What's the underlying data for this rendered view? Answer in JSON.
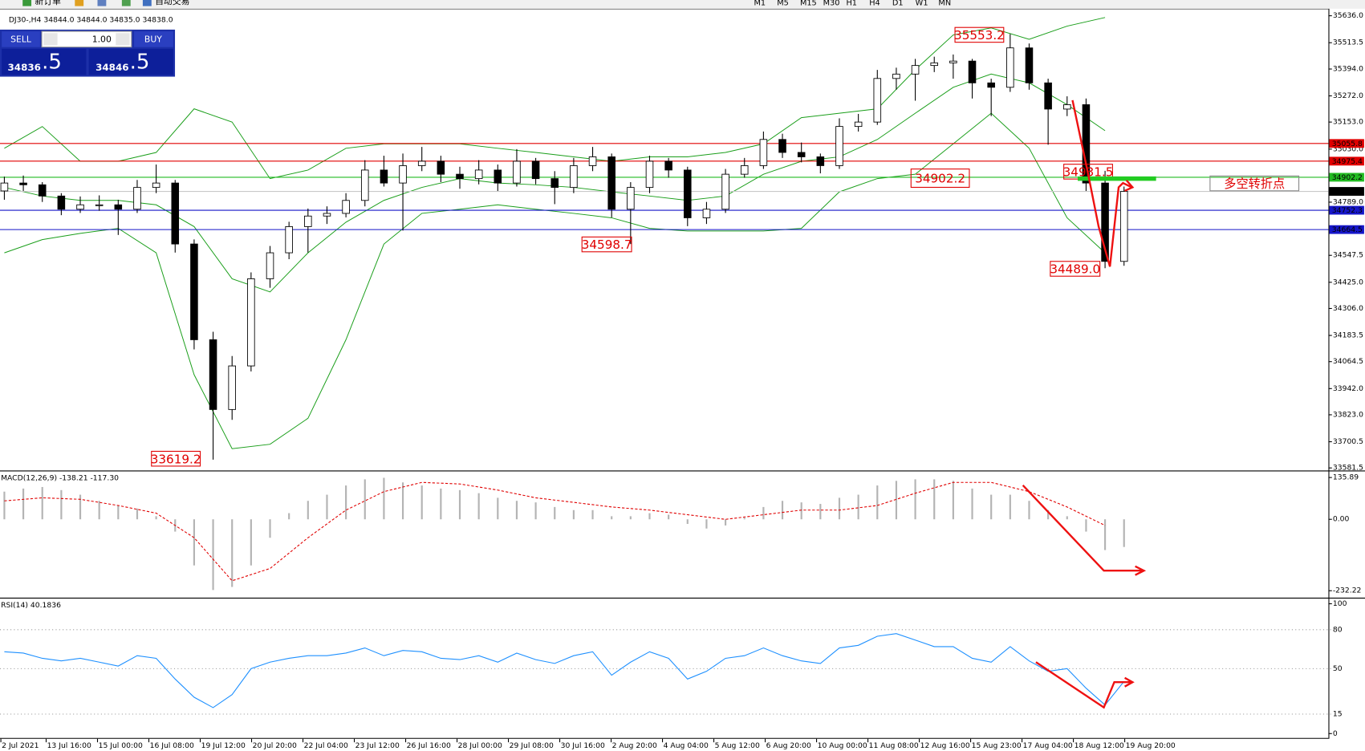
{
  "toolbar": {
    "new_order": "新订单",
    "auto_trading": "自动交易",
    "timeframes": [
      "M1",
      "M5",
      "M15",
      "M30",
      "H1",
      "H4",
      "D1",
      "W1",
      "MN"
    ]
  },
  "trade_panel": {
    "sell": "SELL",
    "buy": "BUY",
    "lots": "1.00",
    "bid_big": "34836",
    "bid_small": ".5",
    "ask_big": "34846",
    "ask_small": ".5"
  },
  "chart_data": [
    {
      "type": "candlestick",
      "title": "DJ30-,H4 34844.0 34844.0 34835.0 34838.0",
      "bull_color": "#ffffff",
      "bear_color": "#000000",
      "band_color": "#1a9e1a",
      "ohlc": [
        [
          34840,
          34905,
          34800,
          34876
        ],
        [
          34876,
          34910,
          34840,
          34868
        ],
        [
          34868,
          34880,
          34790,
          34817
        ],
        [
          34817,
          34830,
          34730,
          34757
        ],
        [
          34757,
          34815,
          34740,
          34777
        ],
        [
          34777,
          34820,
          34750,
          34777
        ],
        [
          34777,
          34800,
          34640,
          34757
        ],
        [
          34757,
          34890,
          34740,
          34856
        ],
        [
          34856,
          34960,
          34830,
          34876
        ],
        [
          34876,
          34890,
          34560,
          34599
        ],
        [
          34599,
          34620,
          34120,
          34164
        ],
        [
          34164,
          34200,
          33619.2,
          33847
        ],
        [
          33847,
          34090,
          33800,
          34045
        ],
        [
          34045,
          34470,
          34020,
          34441
        ],
        [
          34441,
          34590,
          34400,
          34559
        ],
        [
          34559,
          34700,
          34530,
          34678
        ],
        [
          34678,
          34760,
          34560,
          34726
        ],
        [
          34726,
          34770,
          34690,
          34738
        ],
        [
          34738,
          34830,
          34720,
          34797
        ],
        [
          34797,
          34980,
          34770,
          34935
        ],
        [
          34935,
          35000,
          34860,
          34876
        ],
        [
          34876,
          35010,
          34660,
          34955
        ],
        [
          34955,
          35040,
          34930,
          34975
        ],
        [
          34975,
          35000,
          34880,
          34916
        ],
        [
          34916,
          34950,
          34850,
          34896
        ],
        [
          34896,
          34980,
          34870,
          34935
        ],
        [
          34935,
          34960,
          34840,
          34876
        ],
        [
          34876,
          35030,
          34860,
          34975
        ],
        [
          34975,
          34990,
          34870,
          34896
        ],
        [
          34896,
          34930,
          34780,
          34856
        ],
        [
          34856,
          34990,
          34830,
          34955
        ],
        [
          34955,
          35040,
          34930,
          34995
        ],
        [
          34995,
          35010,
          34720,
          34757
        ],
        [
          34757,
          34880,
          34598.7,
          34856
        ],
        [
          34856,
          35000,
          34830,
          34975
        ],
        [
          34975,
          34990,
          34900,
          34935
        ],
        [
          34935,
          34950,
          34680,
          34718
        ],
        [
          34718,
          34790,
          34690,
          34757
        ],
        [
          34757,
          34940,
          34740,
          34916
        ],
        [
          34916,
          34990,
          34900,
          34955
        ],
        [
          34955,
          35110,
          34940,
          35074
        ],
        [
          35074,
          35100,
          34990,
          35015
        ],
        [
          35015,
          35060,
          34970,
          34995
        ],
        [
          34995,
          35010,
          34920,
          34955
        ],
        [
          34955,
          35170,
          34940,
          35133
        ],
        [
          35133,
          35190,
          35110,
          35153
        ],
        [
          35153,
          35390,
          35140,
          35351
        ],
        [
          35351,
          35400,
          35300,
          35371
        ],
        [
          35371,
          35440,
          35250,
          35410
        ],
        [
          35410,
          35450,
          35380,
          35422
        ],
        [
          35422,
          35460,
          35350,
          35430
        ],
        [
          35430,
          35440,
          35260,
          35331
        ],
        [
          35331,
          35350,
          35180,
          35311
        ],
        [
          35311,
          35553.2,
          35290,
          35490
        ],
        [
          35490,
          35510,
          35300,
          35331
        ],
        [
          35331,
          35350,
          35050,
          35212
        ],
        [
          35212,
          35270,
          35180,
          35232
        ],
        [
          35232,
          35260,
          34840,
          34876
        ],
        [
          34876,
          34931.5,
          34489.0,
          34520
        ],
        [
          34520,
          34860,
          34500,
          34838
        ]
      ],
      "bollinger": {
        "upper": [
          35034,
          35133,
          34975,
          34975,
          35015,
          35213,
          35153,
          34896,
          34935,
          35034,
          35054,
          35054,
          35054,
          35034,
          35015,
          34995,
          34975,
          34995,
          34995,
          35015,
          35054,
          35173,
          35193,
          35213,
          35391,
          35549,
          35581,
          35529,
          35589,
          35628
        ],
        "middle": [
          34856,
          34817,
          34797,
          34797,
          34777,
          34678,
          34441,
          34381,
          34559,
          34698,
          34797,
          34856,
          34896,
          34876,
          34868,
          34856,
          34836,
          34817,
          34797,
          34817,
          34916,
          34975,
          34995,
          35074,
          35193,
          35311,
          35371,
          35331,
          35232,
          35114
        ],
        "lower": [
          34559,
          34619,
          34647,
          34670,
          34559,
          34005,
          33669,
          33689,
          33807,
          34164,
          34599,
          34738,
          34757,
          34777,
          34757,
          34738,
          34718,
          34670,
          34658,
          34658,
          34658,
          34670,
          34836,
          34896,
          34916,
          35054,
          35193,
          35034,
          34718,
          34559
        ]
      },
      "ylim": [
        33570,
        35668
      ],
      "yticks": [
        {
          "value": 35636,
          "label": "35636.0"
        },
        {
          "value": 35513.5,
          "label": "35513.5"
        },
        {
          "value": 35394,
          "label": "35394.0"
        },
        {
          "value": 35272,
          "label": "35272.0"
        },
        {
          "value": 35153,
          "label": "35153.0"
        },
        {
          "value": 35030,
          "label": "35030.0"
        },
        {
          "value": 34789,
          "label": "34789.0"
        },
        {
          "value": 34547.5,
          "label": "34547.5"
        },
        {
          "value": 34425,
          "label": "34425.0"
        },
        {
          "value": 34306,
          "label": "34306.0"
        },
        {
          "value": 34183.5,
          "label": "34183.5"
        },
        {
          "value": 34064.5,
          "label": "34064.5"
        },
        {
          "value": 33942,
          "label": "33942.0"
        },
        {
          "value": 33823,
          "label": "33823.0"
        },
        {
          "value": 33700.5,
          "label": "33700.5"
        },
        {
          "value": 33581.5,
          "label": "33581.5"
        }
      ],
      "levels": [
        {
          "value": 35055.8,
          "label": "35055.8",
          "color": "#e00000"
        },
        {
          "value": 34975.4,
          "label": "34975.4",
          "color": "#e00000"
        },
        {
          "value": 34902.2,
          "label": "34902.2",
          "color": "#22bb22"
        },
        {
          "value": 34838,
          "label": "34838.0",
          "color": "#000000"
        },
        {
          "value": 34752.3,
          "label": "34752.3",
          "color": "#1515c8"
        },
        {
          "value": 34664.5,
          "label": "34664.5",
          "color": "#1515c8"
        }
      ],
      "annotations": [
        "35553.2",
        "34902.2",
        "34598.7",
        "33619.2",
        "34489.0",
        "34931.5",
        "多空转折点"
      ],
      "x_labels": [
        "2 Jul 2021",
        "13 Jul 16:00",
        "15 Jul 00:00",
        "16 Jul 08:00",
        "19 Jul 12:00",
        "20 Jul 20:00",
        "22 Jul 04:00",
        "23 Jul 12:00",
        "26 Jul 16:00",
        "28 Jul 00:00",
        "29 Jul 08:00",
        "30 Jul 16:00",
        "2 Aug 20:00",
        "4 Aug 04:00",
        "5 Aug 12:00",
        "6 Aug 20:00",
        "10 Aug 00:00",
        "11 Aug 08:00",
        "12 Aug 16:00",
        "15 Aug 23:00",
        "17 Aug 04:00",
        "18 Aug 12:00",
        "19 Aug 20:00"
      ]
    },
    {
      "type": "macd",
      "title": "MACD(12,26,9) -138.21 -117.30",
      "hist_color": "#b4b4b4",
      "signal_color": "#e00000",
      "histogram": [
        90,
        100,
        105,
        95,
        80,
        60,
        45,
        35,
        10,
        -40,
        -150,
        -230,
        -220,
        -150,
        -60,
        20,
        60,
        80,
        110,
        130,
        135,
        120,
        110,
        100,
        95,
        85,
        70,
        60,
        55,
        40,
        30,
        30,
        10,
        10,
        20,
        15,
        -15,
        -30,
        -20,
        5,
        40,
        60,
        55,
        50,
        70,
        80,
        110,
        125,
        130,
        130,
        125,
        100,
        80,
        80,
        60,
        30,
        10,
        -40,
        -100,
        -90
      ],
      "signal": [
        60,
        70,
        65,
        45,
        20,
        -60,
        -200,
        -160,
        -60,
        30,
        90,
        120,
        115,
        95,
        70,
        55,
        40,
        30,
        15,
        0,
        15,
        30,
        30,
        45,
        85,
        120,
        120,
        90,
        40,
        -20
      ],
      "ylim": [
        -252,
        156
      ],
      "yticks": [
        135.89,
        {
          "value": 0,
          "label": "0.00"
        },
        -232.22
      ]
    },
    {
      "type": "line",
      "title": "RSI(14) 40.1836",
      "color": "#1e90ff",
      "values": [
        63,
        62,
        58,
        56,
        58,
        55,
        52,
        60,
        58,
        42,
        28,
        20,
        30,
        50,
        55,
        58,
        60,
        60,
        62,
        66,
        60,
        64,
        63,
        58,
        57,
        60,
        55,
        62,
        57,
        54,
        60,
        63,
        45,
        55,
        63,
        58,
        42,
        48,
        58,
        60,
        66,
        60,
        56,
        54,
        66,
        68,
        75,
        77,
        72,
        67,
        67,
        58,
        55,
        67,
        56,
        48,
        50,
        35,
        22,
        40.1836
      ],
      "ylim": [
        0,
        100
      ],
      "yticks": [
        100,
        80,
        50,
        15,
        0
      ]
    }
  ]
}
